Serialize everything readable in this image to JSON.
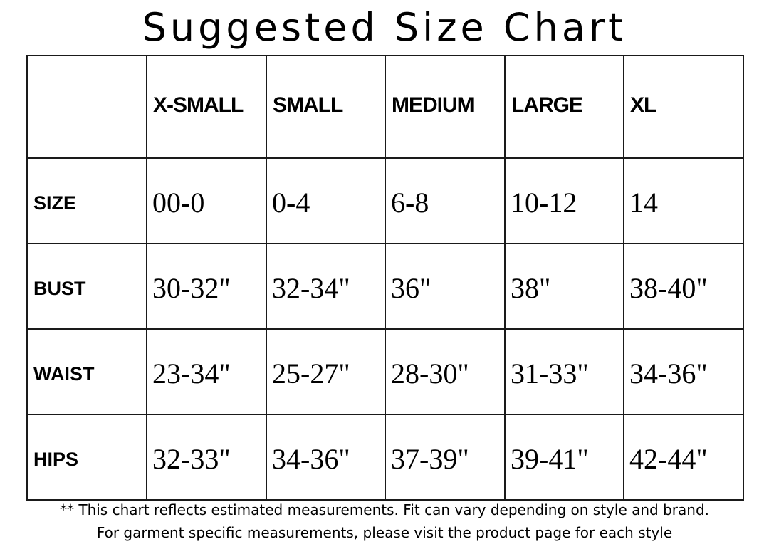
{
  "title": "Suggested Size Chart",
  "table": {
    "corner": "",
    "columns": [
      "X-SMALL",
      "SMALL",
      "MEDIUM",
      "LARGE",
      "XL"
    ],
    "rows": [
      {
        "label": "SIZE",
        "values": [
          "00-0",
          "0-4",
          "6-8",
          "10-12",
          "14"
        ]
      },
      {
        "label": "BUST",
        "values": [
          "30-32\"",
          "32-34\"",
          "36\"",
          "38\"",
          "38-40\""
        ]
      },
      {
        "label": "WAIST",
        "values": [
          "23-34\"",
          "25-27\"",
          "28-30\"",
          "31-33\"",
          "34-36\""
        ]
      },
      {
        "label": "HIPS",
        "values": [
          "32-33\"",
          "34-36\"",
          "37-39\"",
          "39-41\"",
          "42-44\""
        ]
      }
    ]
  },
  "footnote": {
    "line1": "** This chart reflects estimated measurements. Fit can vary depending on style and brand.",
    "line2": "For garment specific measurements, please visit the product page for each style"
  }
}
